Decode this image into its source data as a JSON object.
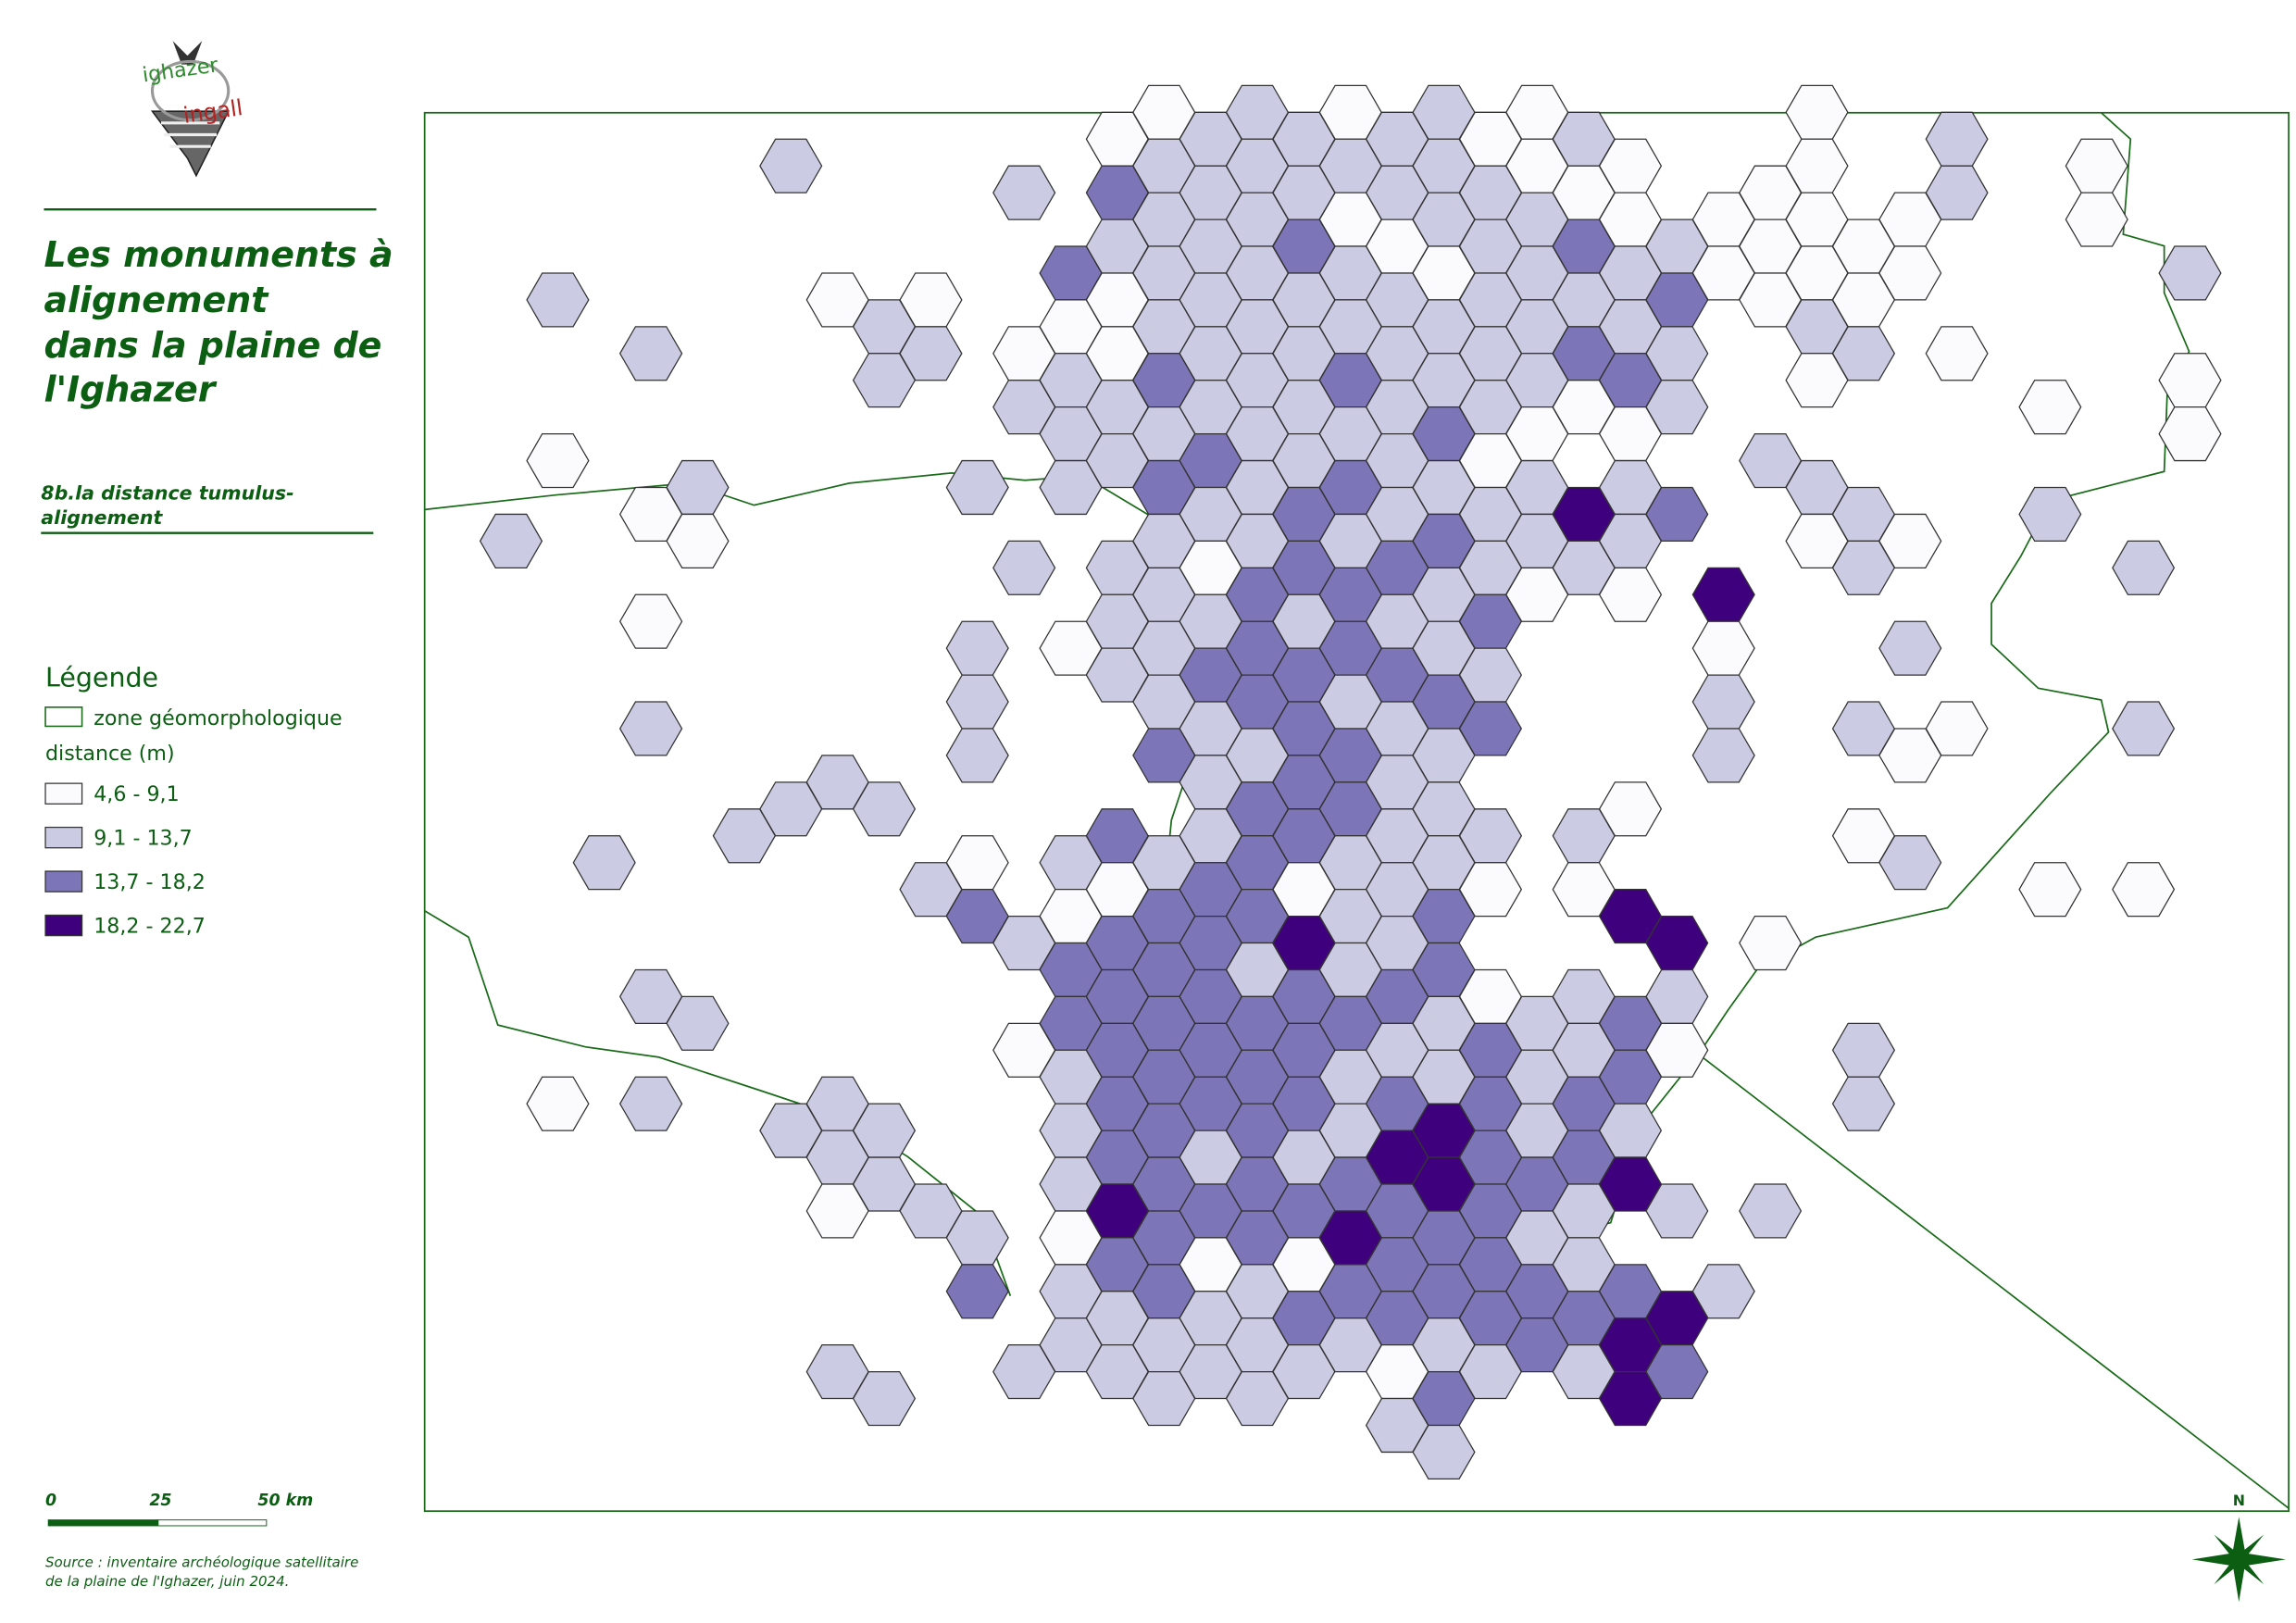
{
  "logo": {
    "top": "ighazer",
    "bottom": "ingall"
  },
  "title": [
    "Les monuments à",
    "alignement",
    "dans la plaine de",
    "l'Ighazer"
  ],
  "subtitle": [
    "8b.la distance tumulus-",
    "alignement"
  ],
  "legend": {
    "heading": "Légende",
    "zone": "zone géomorphologique",
    "distance_heading": "distance (m)",
    "classes": [
      {
        "label": "4,6 - 9,1",
        "color": "#fbfbfd"
      },
      {
        "label": "9,1 - 13,7",
        "color": "#cbcbe3"
      },
      {
        "label": "13,7 - 18,2",
        "color": "#7c76b9"
      },
      {
        "label": "18,2 - 22,7",
        "color": "#3f007d"
      }
    ]
  },
  "scale_bar": [
    "0",
    "25",
    "50 km"
  ],
  "source": [
    "Source : inventaire archéologique satellitaire",
    "de la plaine de l'Ighazer, juin 2024."
  ],
  "north": "N",
  "hex_grid": [
    [
      null,
      null,
      null,
      null,
      null,
      null,
      null,
      null,
      null,
      null,
      null,
      null,
      null,
      0,
      0,
      1,
      1,
      1,
      0,
      1,
      1,
      0,
      0,
      1,
      null,
      null,
      null,
      null,
      0,
      null,
      null,
      1,
      null,
      null,
      null,
      null,
      null
    ],
    [
      null,
      null,
      null,
      null,
      null,
      null,
      1,
      null,
      null,
      null,
      null,
      1,
      null,
      2,
      1,
      1,
      1,
      1,
      1,
      1,
      1,
      1,
      0,
      0,
      0,
      null,
      null,
      0,
      0,
      null,
      null,
      1,
      null,
      null,
      0,
      null,
      null
    ],
    [
      null,
      null,
      null,
      null,
      null,
      null,
      null,
      null,
      null,
      null,
      null,
      null,
      null,
      1,
      1,
      1,
      1,
      2,
      0,
      0,
      1,
      1,
      1,
      2,
      0,
      1,
      0,
      0,
      0,
      0,
      0,
      null,
      null,
      null,
      0,
      null,
      null
    ],
    [
      null,
      1,
      null,
      null,
      null,
      null,
      null,
      0,
      null,
      0,
      null,
      null,
      2,
      0,
      1,
      1,
      1,
      1,
      1,
      1,
      0,
      1,
      1,
      1,
      1,
      2,
      0,
      0,
      0,
      0,
      0,
      null,
      null,
      null,
      null,
      null,
      1
    ],
    [
      null,
      null,
      null,
      1,
      null,
      null,
      null,
      null,
      1,
      1,
      null,
      0,
      0,
      0,
      1,
      1,
      1,
      1,
      1,
      1,
      1,
      1,
      1,
      2,
      1,
      1,
      null,
      null,
      1,
      1,
      null,
      0,
      null,
      null,
      null,
      null,
      null
    ],
    [
      null,
      null,
      null,
      null,
      null,
      null,
      null,
      null,
      1,
      null,
      null,
      1,
      1,
      1,
      2,
      1,
      1,
      1,
      2,
      1,
      1,
      1,
      1,
      0,
      2,
      1,
      null,
      null,
      0,
      null,
      null,
      null,
      null,
      0,
      null,
      null,
      0
    ],
    [
      null,
      0,
      null,
      null,
      null,
      null,
      null,
      null,
      null,
      null,
      null,
      null,
      1,
      1,
      1,
      2,
      1,
      1,
      1,
      1,
      2,
      0,
      0,
      null,
      0,
      null,
      null,
      1,
      null,
      null,
      null,
      null,
      null,
      null,
      null,
      null,
      0
    ],
    [
      null,
      null,
      null,
      0,
      1,
      null,
      null,
      null,
      null,
      null,
      1,
      null,
      1,
      null,
      2,
      1,
      1,
      2,
      2,
      1,
      1,
      1,
      1,
      3,
      1,
      2,
      null,
      null,
      1,
      1,
      null,
      null,
      null,
      1,
      null,
      null,
      null
    ],
    [
      1,
      null,
      null,
      null,
      0,
      null,
      null,
      null,
      null,
      null,
      null,
      1,
      null,
      1,
      1,
      0,
      1,
      2,
      1,
      2,
      2,
      1,
      1,
      1,
      1,
      null,
      null,
      null,
      0,
      1,
      0,
      null,
      null,
      null,
      null,
      1,
      null
    ],
    [
      null,
      null,
      null,
      0,
      null,
      null,
      null,
      null,
      null,
      null,
      null,
      null,
      null,
      1,
      1,
      1,
      2,
      1,
      2,
      1,
      1,
      2,
      0,
      null,
      0,
      null,
      3,
      null,
      null,
      null,
      null,
      null,
      null,
      null,
      null,
      null,
      null
    ],
    [
      null,
      null,
      null,
      null,
      null,
      null,
      null,
      null,
      null,
      null,
      1,
      null,
      0,
      1,
      1,
      2,
      2,
      2,
      2,
      2,
      1,
      1,
      null,
      null,
      null,
      null,
      0,
      null,
      null,
      null,
      1,
      null,
      null,
      null,
      null,
      null,
      null
    ],
    [
      null,
      null,
      null,
      1,
      null,
      null,
      null,
      null,
      null,
      null,
      1,
      null,
      null,
      null,
      1,
      1,
      2,
      2,
      1,
      1,
      2,
      2,
      null,
      null,
      null,
      null,
      1,
      null,
      null,
      1,
      null,
      0,
      null,
      null,
      null,
      1,
      null
    ],
    [
      null,
      null,
      null,
      null,
      null,
      null,
      null,
      1,
      null,
      null,
      1,
      null,
      null,
      null,
      2,
      1,
      1,
      2,
      2,
      1,
      1,
      null,
      null,
      null,
      null,
      null,
      1,
      null,
      null,
      null,
      0,
      null,
      null,
      null,
      null,
      null,
      null
    ],
    [
      null,
      null,
      null,
      null,
      null,
      1,
      1,
      null,
      1,
      null,
      null,
      null,
      null,
      2,
      null,
      1,
      2,
      2,
      2,
      1,
      1,
      1,
      null,
      1,
      0,
      null,
      null,
      null,
      null,
      0,
      null,
      null,
      null,
      null,
      null,
      null,
      null
    ],
    [
      null,
      null,
      1,
      null,
      null,
      null,
      null,
      null,
      null,
      1,
      0,
      null,
      1,
      0,
      1,
      2,
      2,
      0,
      1,
      1,
      1,
      0,
      null,
      0,
      null,
      null,
      null,
      null,
      null,
      null,
      1,
      null,
      null,
      0,
      null,
      0,
      null
    ],
    [
      null,
      null,
      null,
      null,
      null,
      null,
      null,
      null,
      null,
      null,
      2,
      1,
      0,
      2,
      2,
      2,
      2,
      3,
      1,
      1,
      2,
      null,
      null,
      null,
      3,
      3,
      null,
      0,
      null,
      null,
      null,
      null,
      null,
      null,
      null,
      null,
      null
    ],
    [
      null,
      null,
      null,
      1,
      null,
      null,
      null,
      null,
      null,
      null,
      null,
      null,
      2,
      2,
      2,
      2,
      1,
      2,
      1,
      2,
      2,
      0,
      null,
      1,
      null,
      1,
      null,
      null,
      null,
      null,
      null,
      null,
      null,
      null,
      null,
      null,
      null
    ],
    [
      null,
      null,
      null,
      null,
      1,
      null,
      null,
      null,
      null,
      null,
      null,
      0,
      2,
      2,
      2,
      2,
      2,
      2,
      2,
      1,
      1,
      2,
      1,
      1,
      2,
      0,
      null,
      null,
      null,
      1,
      null,
      null,
      null,
      null,
      null,
      null,
      null
    ],
    [
      null,
      0,
      null,
      1,
      null,
      null,
      null,
      1,
      null,
      null,
      null,
      null,
      1,
      2,
      2,
      2,
      2,
      2,
      1,
      2,
      1,
      2,
      1,
      2,
      2,
      null,
      null,
      null,
      null,
      1,
      null,
      null,
      null,
      null,
      null,
      null,
      null
    ],
    [
      null,
      null,
      null,
      null,
      null,
      null,
      1,
      1,
      1,
      null,
      null,
      null,
      1,
      2,
      2,
      1,
      2,
      1,
      1,
      3,
      3,
      2,
      1,
      2,
      1,
      null,
      null,
      null,
      null,
      null,
      null,
      null,
      null,
      null,
      null,
      null,
      null
    ],
    [
      null,
      null,
      null,
      null,
      null,
      null,
      null,
      0,
      1,
      1,
      null,
      null,
      1,
      3,
      2,
      2,
      2,
      2,
      2,
      2,
      3,
      2,
      2,
      1,
      3,
      1,
      null,
      1,
      null,
      null,
      null,
      null,
      null,
      null,
      null,
      null,
      null
    ],
    [
      null,
      null,
      null,
      null,
      null,
      null,
      null,
      null,
      null,
      null,
      1,
      null,
      0,
      2,
      2,
      0,
      2,
      0,
      3,
      2,
      2,
      2,
      1,
      1,
      null,
      null,
      null,
      null,
      null,
      null,
      null,
      null,
      null,
      null,
      null,
      null,
      null
    ],
    [
      null,
      null,
      null,
      null,
      null,
      null,
      null,
      null,
      null,
      null,
      2,
      null,
      1,
      1,
      2,
      1,
      1,
      2,
      2,
      2,
      2,
      2,
      2,
      2,
      2,
      3,
      1,
      null,
      null,
      null,
      null,
      null,
      null,
      null,
      null,
      null,
      null
    ],
    [
      null,
      null,
      null,
      null,
      null,
      null,
      null,
      1,
      null,
      null,
      null,
      1,
      1,
      1,
      1,
      1,
      1,
      1,
      1,
      0,
      1,
      1,
      2,
      1,
      3,
      2,
      null,
      null,
      null,
      null,
      null,
      null,
      null,
      null,
      null,
      null,
      null
    ],
    [
      null,
      null,
      null,
      null,
      null,
      null,
      null,
      null,
      1,
      null,
      null,
      null,
      null,
      null,
      1,
      null,
      1,
      null,
      null,
      1,
      2,
      null,
      null,
      null,
      3,
      null,
      null,
      null,
      null,
      null,
      null,
      null,
      null,
      null,
      null,
      null,
      null
    ],
    [
      null,
      null,
      null,
      null,
      null,
      null,
      null,
      null,
      null,
      null,
      null,
      null,
      null,
      null,
      null,
      null,
      null,
      null,
      null,
      null,
      1,
      null,
      null,
      null,
      null,
      null,
      null,
      null,
      null,
      null,
      null,
      null,
      null,
      null,
      null,
      null,
      null
    ]
  ]
}
